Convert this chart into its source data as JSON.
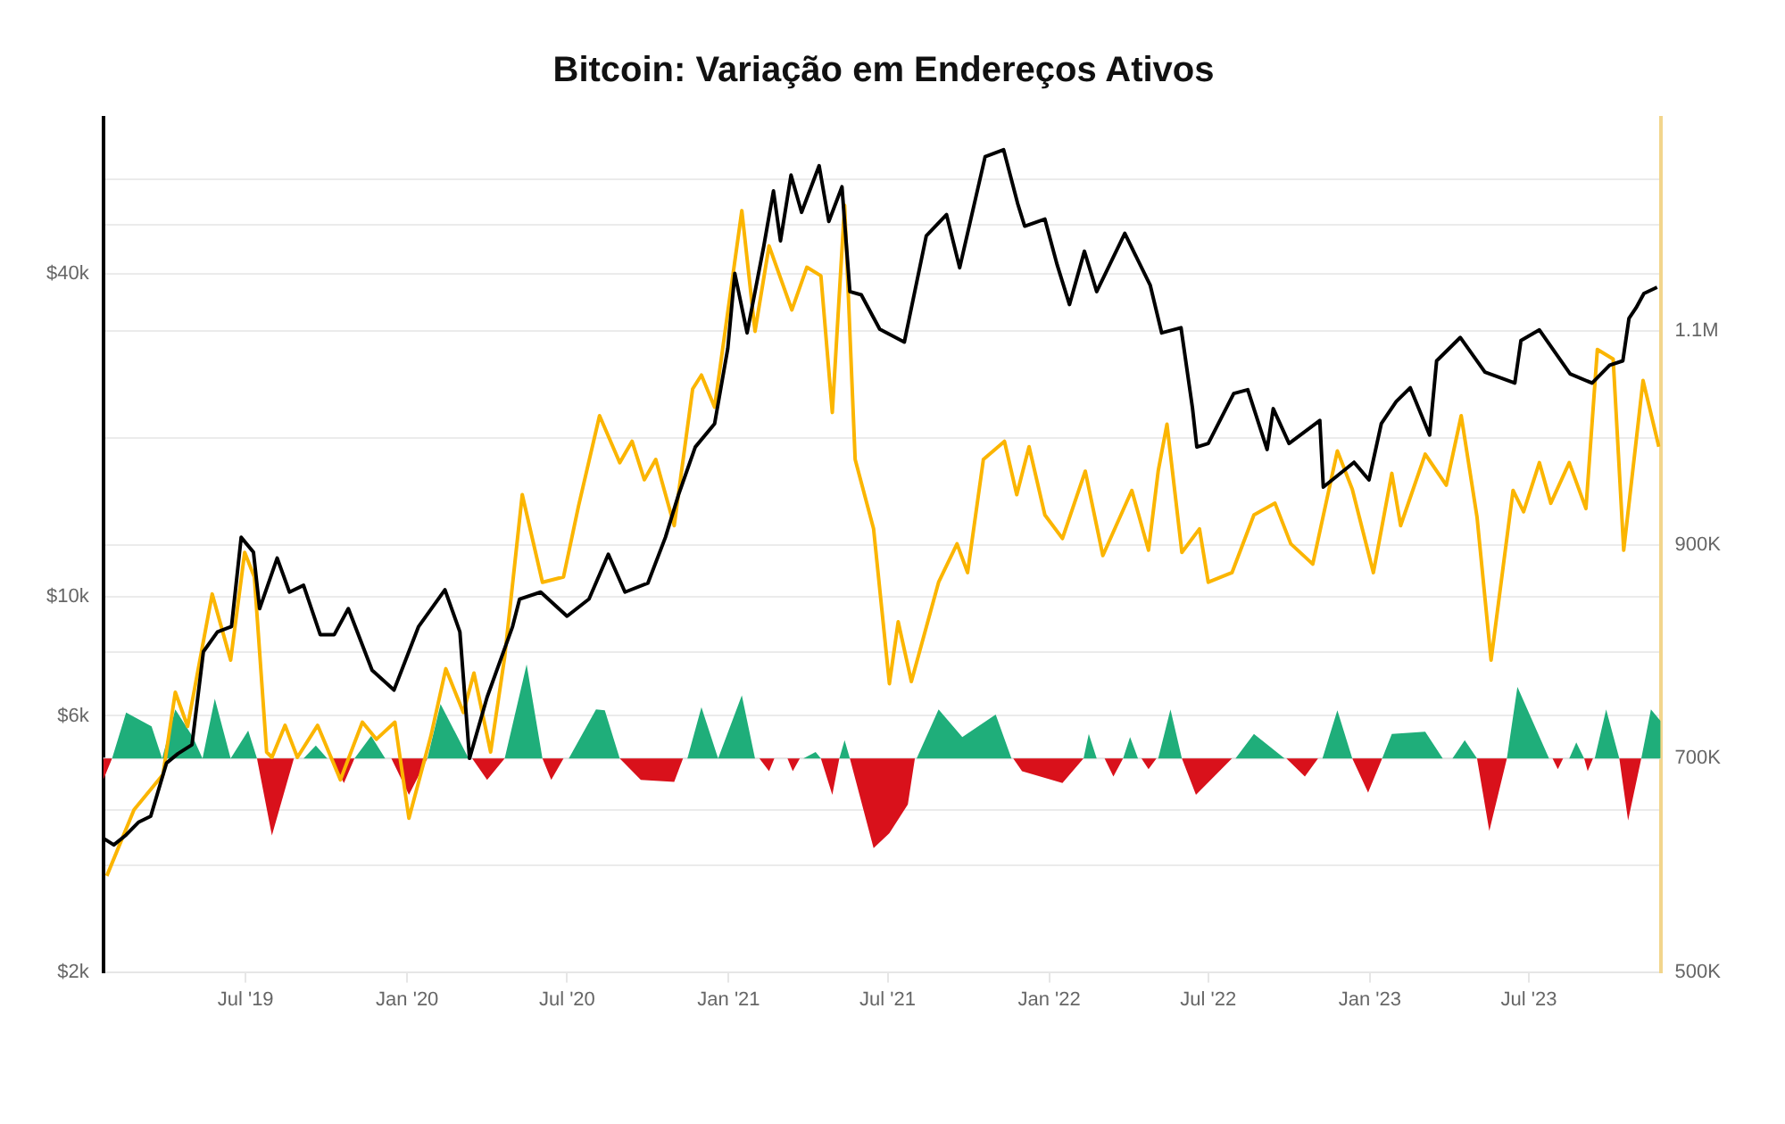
{
  "chart_data": {
    "type": "line",
    "title": "Bitcoin: Variação em Endereços Ativos",
    "log": "y",
    "grid": "y",
    "legend": false,
    "marker": "none",
    "line_style": "solid",
    "xlim": [
      "2019-01-20",
      "2023-11-28"
    ],
    "xticks": [
      {
        "value": "2019-07-01",
        "label": "Jul '19"
      },
      {
        "value": "2020-01-01",
        "label": "Jan '20"
      },
      {
        "value": "2020-07-01",
        "label": "Jul '20"
      },
      {
        "value": "2021-01-01",
        "label": "Jan '21"
      },
      {
        "value": "2021-07-01",
        "label": "Jul '21"
      },
      {
        "value": "2022-01-01",
        "label": "Jan '22"
      },
      {
        "value": "2022-07-01",
        "label": "Jul '22"
      },
      {
        "value": "2023-01-01",
        "label": "Jan '23"
      },
      {
        "value": "2023-07-01",
        "label": "Jul '23"
      }
    ],
    "ylim": [
      2000,
      78000
    ],
    "yticks": [
      {
        "value": 2000,
        "label": "$2k"
      },
      {
        "value": 4000,
        "label": null
      },
      {
        "value": 6000,
        "label": "$6k"
      },
      {
        "value": 10000,
        "label": "$10k"
      },
      {
        "value": 40000,
        "label": "$40k"
      },
      {
        "value": 60000,
        "label": null
      }
    ],
    "y2lim": [
      500000,
      1300000
    ],
    "y2ticks": [
      {
        "value": 500000,
        "label": "500K"
      },
      {
        "value": 600000,
        "label": null
      },
      {
        "value": 700000,
        "label": "700K"
      },
      {
        "value": 800000,
        "label": null
      },
      {
        "value": 900000,
        "label": "900K"
      },
      {
        "value": 1000000,
        "label": null
      },
      {
        "value": 1100000,
        "label": "1.1M"
      },
      {
        "value": 1200000,
        "label": null
      }
    ],
    "ref_lines": [
      {
        "axis": "y2",
        "value": 700000,
        "color": "#e6e6e6"
      }
    ],
    "series": [
      {
        "color": "#000000",
        "x": [
          "2019-01-20",
          "2019-02-01",
          "2019-02-15",
          "2019-03-01",
          "2019-03-15",
          "2019-04-02",
          "2019-04-15",
          "2019-05-01",
          "2019-05-14",
          "2019-05-30",
          "2019-06-15",
          "2019-06-26",
          "2019-07-10",
          "2019-07-17",
          "2019-08-06",
          "2019-08-20",
          "2019-09-05",
          "2019-09-24",
          "2019-10-10",
          "2019-10-26",
          "2019-11-22",
          "2019-12-17",
          "2020-01-14",
          "2020-02-13",
          "2020-03-01",
          "2020-03-12",
          "2020-04-01",
          "2020-04-30",
          "2020-05-08",
          "2020-06-01",
          "2020-07-01",
          "2020-07-26",
          "2020-08-17",
          "2020-09-05",
          "2020-10-01",
          "2020-10-21",
          "2020-11-05",
          "2020-11-24",
          "2020-12-16",
          "2020-12-31",
          "2021-01-08",
          "2021-01-22",
          "2021-02-10",
          "2021-02-21",
          "2021-03-01",
          "2021-03-13",
          "2021-03-25",
          "2021-04-14",
          "2021-04-25",
          "2021-05-10",
          "2021-05-19",
          "2021-06-01",
          "2021-06-22",
          "2021-07-20",
          "2021-08-14",
          "2021-09-06",
          "2021-09-21",
          "2021-10-20",
          "2021-11-10",
          "2021-11-26",
          "2021-12-04",
          "2021-12-27",
          "2022-01-10",
          "2022-01-24",
          "2022-02-10",
          "2022-02-24",
          "2022-03-28",
          "2022-04-26",
          "2022-05-09",
          "2022-05-31",
          "2022-06-13",
          "2022-06-18",
          "2022-07-01",
          "2022-07-30",
          "2022-08-15",
          "2022-09-06",
          "2022-09-13",
          "2022-10-01",
          "2022-11-05",
          "2022-11-09",
          "2022-12-14",
          "2022-12-31",
          "2023-01-14",
          "2023-01-31",
          "2023-02-16",
          "2023-03-10",
          "2023-03-18",
          "2023-04-14",
          "2023-05-12",
          "2023-06-15",
          "2023-06-22",
          "2023-07-13",
          "2023-08-17",
          "2023-09-11",
          "2023-10-01",
          "2023-10-16",
          "2023-10-23",
          "2023-10-31",
          "2023-11-09",
          "2023-11-24"
        ],
        "values": [
          3550,
          3450,
          3600,
          3800,
          3900,
          4900,
          5100,
          5300,
          7900,
          8600,
          8800,
          12900,
          12100,
          9500,
          11800,
          10200,
          10500,
          8500,
          8500,
          9500,
          7300,
          6700,
          8800,
          10300,
          8600,
          5000,
          6500,
          8800,
          9900,
          10200,
          9200,
          9900,
          12000,
          10200,
          10600,
          12900,
          15500,
          19000,
          21000,
          29000,
          40000,
          31000,
          45000,
          57000,
          46000,
          61000,
          52000,
          63500,
          50000,
          58000,
          37000,
          36500,
          31500,
          29800,
          47000,
          51500,
          41000,
          66000,
          68000,
          54000,
          49000,
          50500,
          41500,
          35000,
          44000,
          37000,
          47500,
          38000,
          31000,
          31700,
          22500,
          19000,
          19300,
          23900,
          24300,
          18800,
          22400,
          19300,
          21300,
          16000,
          17800,
          16500,
          21000,
          23100,
          24500,
          20000,
          27500,
          30400,
          26200,
          25000,
          30000,
          31400,
          26000,
          25000,
          27000,
          27500,
          33000,
          34500,
          36700,
          37700
        ]
      },
      {
        "axis": "y2",
        "color": "#fbb500",
        "x": [
          "2019-01-24",
          "2019-02-24",
          "2019-03-29",
          "2019-04-12",
          "2019-04-26",
          "2019-05-24",
          "2019-06-14",
          "2019-06-30",
          "2019-07-11",
          "2019-07-25",
          "2019-07-31",
          "2019-08-15",
          "2019-08-29",
          "2019-09-21",
          "2019-10-17",
          "2019-11-11",
          "2019-11-27",
          "2019-12-18",
          "2020-01-03",
          "2020-01-28",
          "2020-02-14",
          "2020-03-05",
          "2020-03-17",
          "2020-04-05",
          "2020-04-21",
          "2020-05-11",
          "2020-06-03",
          "2020-06-27",
          "2020-07-14",
          "2020-08-07",
          "2020-08-30",
          "2020-09-13",
          "2020-09-27",
          "2020-10-10",
          "2020-10-31",
          "2020-11-21",
          "2020-12-01",
          "2020-12-16",
          "2021-01-16",
          "2021-01-31",
          "2021-02-16",
          "2021-03-14",
          "2021-03-31",
          "2021-04-16",
          "2021-04-29",
          "2021-05-13",
          "2021-05-25",
          "2021-06-15",
          "2021-07-03",
          "2021-07-13",
          "2021-07-28",
          "2021-08-28",
          "2021-09-18",
          "2021-09-30",
          "2021-10-18",
          "2021-11-11",
          "2021-11-25",
          "2021-12-09",
          "2021-12-27",
          "2022-01-16",
          "2022-02-11",
          "2022-03-03",
          "2022-04-05",
          "2022-04-24",
          "2022-05-05",
          "2022-05-15",
          "2022-06-01",
          "2022-06-21",
          "2022-07-01",
          "2022-07-28",
          "2022-08-22",
          "2022-09-15",
          "2022-10-03",
          "2022-10-28",
          "2022-11-25",
          "2022-12-12",
          "2023-01-05",
          "2023-01-26",
          "2023-02-05",
          "2023-03-05",
          "2023-03-29",
          "2023-04-15",
          "2023-05-03",
          "2023-05-19",
          "2023-06-13",
          "2023-06-25",
          "2023-07-13",
          "2023-07-26",
          "2023-08-16",
          "2023-09-04",
          "2023-09-17",
          "2023-10-05",
          "2023-10-17",
          "2023-11-08",
          "2023-11-26"
        ],
        "values": [
          590000,
          652000,
          685000,
          762000,
          730000,
          854000,
          792000,
          893000,
          870000,
          706000,
          701000,
          731000,
          701000,
          731000,
          680000,
          734000,
          718000,
          734000,
          644000,
          721000,
          784000,
          743000,
          780000,
          706000,
          795000,
          947000,
          865000,
          870000,
          936000,
          1021000,
          977000,
          997000,
          961000,
          980000,
          918000,
          1046000,
          1059000,
          1029000,
          1213000,
          1100000,
          1180000,
          1120000,
          1160000,
          1152000,
          1024000,
          1218000,
          980000,
          915000,
          770000,
          828000,
          772000,
          865000,
          901000,
          874000,
          980000,
          997000,
          947000,
          992000,
          928000,
          906000,
          969000,
          890000,
          951000,
          895000,
          969000,
          1013000,
          893000,
          915000,
          865000,
          874000,
          928000,
          939000,
          901000,
          882000,
          988000,
          952000,
          874000,
          967000,
          918000,
          985000,
          956000,
          1021000,
          926000,
          792000,
          951000,
          931000,
          977000,
          939000,
          977000,
          934000,
          1083000,
          1074000,
          895000,
          1054000,
          992000
        ]
      },
      {
        "type": "area",
        "axis": "y2",
        "color": "#1fae7a",
        "x": [
          "2019-01-30",
          "2019-02-15",
          "2019-03-16",
          "2019-03-28",
          "2019-04-12",
          "2019-05-02",
          "2019-05-13",
          "2019-05-27",
          "2019-06-14",
          "2019-07-04",
          "2019-07-14",
          "2019-09-05",
          "2019-09-19",
          "2019-10-02",
          "2019-11-02",
          "2019-11-21",
          "2019-12-07",
          "2020-01-24",
          "2020-02-08",
          "2020-03-11",
          "2020-04-21",
          "2020-05-16",
          "2020-06-03",
          "2020-07-03",
          "2020-08-03",
          "2020-08-13",
          "2020-08-30",
          "2020-11-15",
          "2020-12-01",
          "2020-12-20",
          "2021-01-16",
          "2021-01-31",
          "2021-03-27",
          "2021-04-10",
          "2021-04-16",
          "2021-05-07",
          "2021-05-13",
          "2021-05-19",
          "2021-08-03",
          "2021-08-28",
          "2021-09-24",
          "2021-11-01",
          "2021-11-19",
          "2022-02-09",
          "2022-02-15",
          "2022-02-24",
          "2022-03-26",
          "2022-04-03",
          "2022-04-12",
          "2022-05-05",
          "2022-05-19",
          "2022-06-01",
          "2022-08-01",
          "2022-08-22",
          "2022-09-26",
          "2022-11-08",
          "2022-11-25",
          "2022-12-12",
          "2023-01-15",
          "2023-01-26",
          "2023-03-05",
          "2023-03-25",
          "2023-04-05",
          "2023-04-19",
          "2023-05-03",
          "2023-06-06",
          "2023-06-18",
          "2023-07-24",
          "2023-08-16",
          "2023-08-24",
          "2023-09-02",
          "2023-09-14",
          "2023-09-27",
          "2023-10-12",
          "2023-11-06",
          "2023-11-17",
          "2023-11-28"
        ],
        "values": [
          700000,
          743000,
          730000,
          700000,
          746000,
          720000,
          700000,
          756000,
          700000,
          726000,
          700000,
          700000,
          712000,
          700000,
          700000,
          721000,
          700000,
          700000,
          751000,
          700000,
          700000,
          788000,
          700000,
          700000,
          746000,
          745000,
          700000,
          700000,
          748000,
          700000,
          759000,
          700000,
          700000,
          706000,
          700000,
          700000,
          717000,
          700000,
          700000,
          746000,
          720000,
          741000,
          700000,
          700000,
          723000,
          700000,
          700000,
          720000,
          700000,
          700000,
          746000,
          700000,
          700000,
          723000,
          700000,
          700000,
          745000,
          700000,
          700000,
          723000,
          725000,
          700000,
          700000,
          717000,
          700000,
          700000,
          767000,
          700000,
          700000,
          715000,
          700000,
          700000,
          746000,
          700000,
          700000,
          746000,
          735000
        ]
      },
      {
        "type": "area",
        "axis": "y2",
        "color": "#d9111b",
        "x": [
          "2019-01-20",
          "2019-01-30",
          "2019-07-14",
          "2019-07-31",
          "2019-08-25",
          "2019-10-06",
          "2019-10-21",
          "2019-11-02",
          "2019-12-14",
          "2020-01-03",
          "2020-01-24",
          "2020-03-15",
          "2020-04-01",
          "2020-04-21",
          "2020-06-03",
          "2020-06-13",
          "2020-06-27",
          "2020-08-30",
          "2020-09-23",
          "2020-10-31",
          "2020-11-10",
          "2021-02-05",
          "2021-02-16",
          "2021-02-22",
          "2021-03-09",
          "2021-03-15",
          "2021-03-23",
          "2021-04-16",
          "2021-04-29",
          "2021-05-07",
          "2021-05-19",
          "2021-06-15",
          "2021-07-03",
          "2021-07-24",
          "2021-08-01",
          "2021-11-21",
          "2021-12-01",
          "2022-01-16",
          "2022-02-09",
          "2022-03-05",
          "2022-03-15",
          "2022-03-26",
          "2022-04-16",
          "2022-04-24",
          "2022-05-03",
          "2022-06-01",
          "2022-06-17",
          "2022-07-28",
          "2022-09-28",
          "2022-10-19",
          "2022-11-03",
          "2022-12-12",
          "2022-12-30",
          "2023-01-15",
          "2023-05-03",
          "2023-05-17",
          "2023-06-06",
          "2023-07-28",
          "2023-08-03",
          "2023-08-09",
          "2023-09-02",
          "2023-09-06",
          "2023-09-12",
          "2023-10-12",
          "2023-10-22",
          "2023-11-06"
        ],
        "values": [
          680000,
          700000,
          700000,
          628000,
          700000,
          700000,
          677000,
          700000,
          700000,
          666000,
          700000,
          700000,
          680000,
          700000,
          700000,
          680000,
          700000,
          700000,
          680000,
          678000,
          700000,
          700000,
          688000,
          700000,
          700000,
          688000,
          700000,
          700000,
          666000,
          700000,
          700000,
          616000,
          630000,
          657000,
          700000,
          700000,
          688000,
          677000,
          700000,
          700000,
          683000,
          700000,
          700000,
          690000,
          700000,
          700000,
          666000,
          700000,
          700000,
          683000,
          700000,
          700000,
          668000,
          700000,
          700000,
          632000,
          700000,
          700000,
          690000,
          700000,
          700000,
          688000,
          700000,
          700000,
          642000,
          700000
        ]
      }
    ]
  }
}
